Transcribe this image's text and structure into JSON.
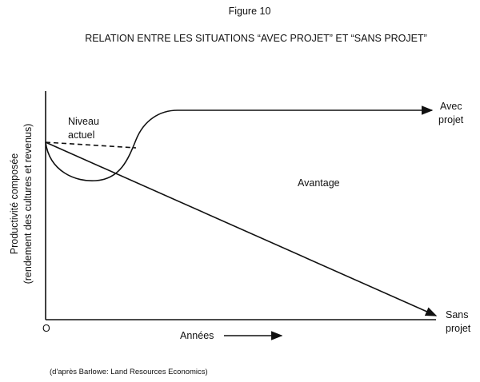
{
  "figure_label": "Figure 10",
  "title": "RELATION ENTRE LES SITUATIONS “AVEC PROJET” ET “SANS PROJET”",
  "y_axis_label": [
    "Productivité composée",
    "(rendement des cultures et revenus)"
  ],
  "x_axis_label": "Années",
  "origin_label": "O",
  "labels": {
    "current_level": [
      "Niveau",
      "actuel"
    ],
    "with_project": [
      "Avec",
      "projet"
    ],
    "without_project": [
      "Sans",
      "projet"
    ],
    "advantage": "Avantage"
  },
  "source": "(d'après Barlowe: Land Resources Economics)"
}
